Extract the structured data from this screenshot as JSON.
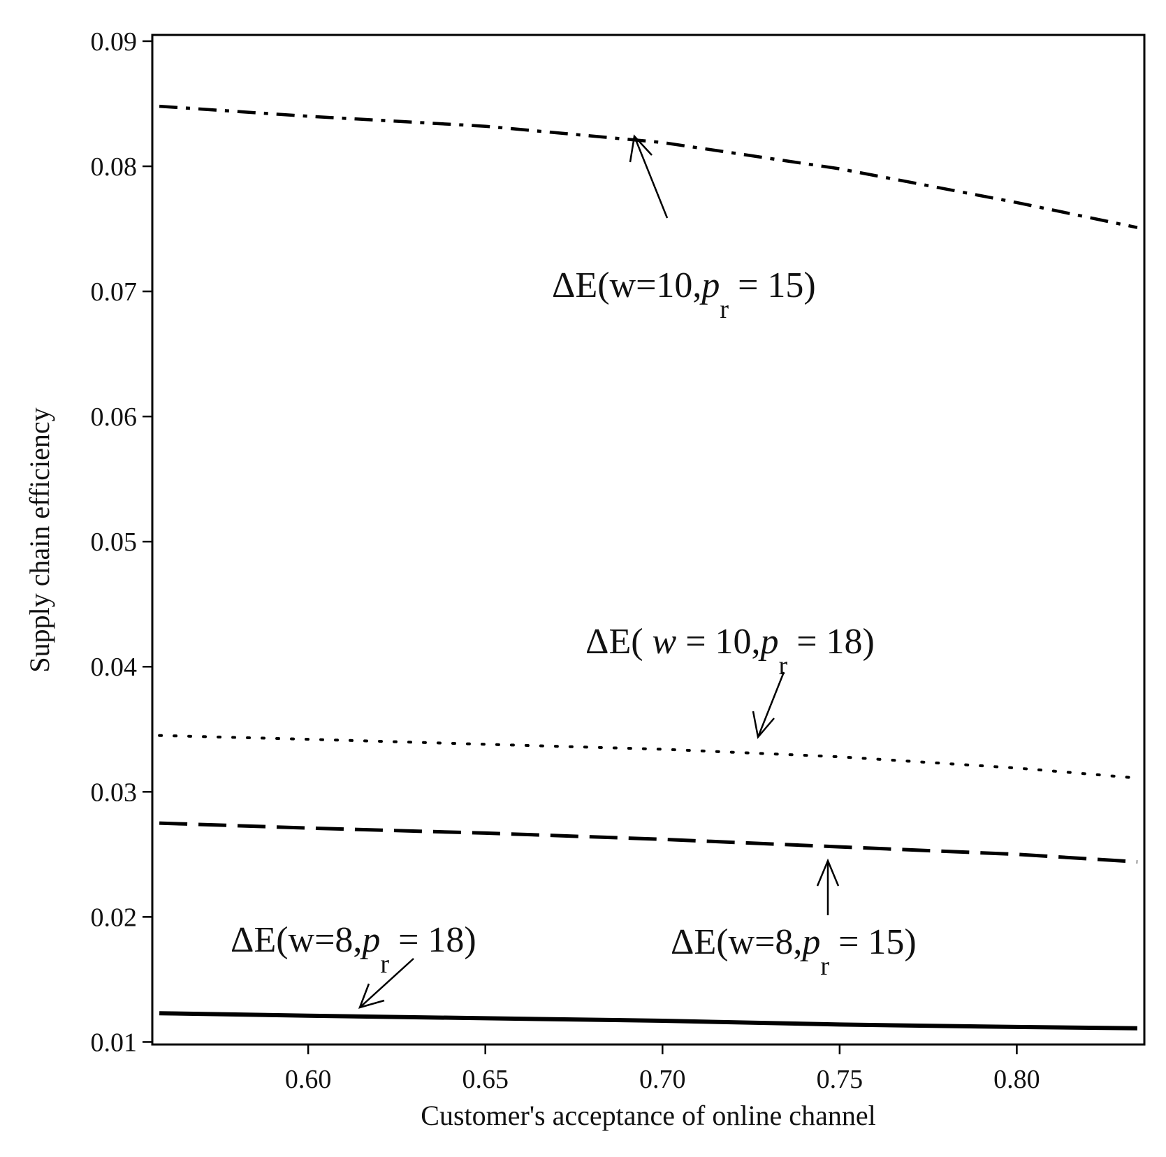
{
  "chart_data": {
    "type": "line",
    "xlabel": "Customer's acceptance of online channel",
    "ylabel": "Supply chain efficiency",
    "xlim": [
      0.556,
      0.836
    ],
    "ylim": [
      0.0098,
      0.0905
    ],
    "xticks": [
      0.6,
      0.65,
      0.7,
      0.75,
      0.8
    ],
    "xtick_labels": [
      "0.60",
      "0.65",
      "0.70",
      "0.75",
      "0.80"
    ],
    "yticks": [
      0.01,
      0.02,
      0.03,
      0.04,
      0.05,
      0.06,
      0.07,
      0.08,
      0.09
    ],
    "ytick_labels": [
      "0.01",
      "0.02",
      "0.03",
      "0.04",
      "0.05",
      "0.06",
      "0.07",
      "0.08",
      "0.09"
    ],
    "grid": false,
    "legend": "none",
    "series": [
      {
        "style": "dash-dot",
        "label_parts": {
          "pre": "ΔE(w=10,",
          "var": "p",
          "sub": "r",
          "post": " = 15)"
        },
        "x": [
          0.558,
          0.6,
          0.65,
          0.7,
          0.75,
          0.8,
          0.834
        ],
        "y": [
          0.0848,
          0.084,
          0.0832,
          0.0819,
          0.0798,
          0.0771,
          0.0751
        ]
      },
      {
        "style": "dotted",
        "label_parts": {
          "pre": "ΔE( ",
          "var": "w",
          "sub": "r",
          "post_a": " = 10,",
          "var2": "p",
          "post": " = 18)"
        },
        "x": [
          0.558,
          0.6,
          0.65,
          0.7,
          0.75,
          0.8,
          0.834
        ],
        "y": [
          0.0345,
          0.0342,
          0.0338,
          0.0334,
          0.0328,
          0.0319,
          0.0311
        ]
      },
      {
        "style": "dashed",
        "label_parts": {
          "pre": "ΔE(w=8,",
          "var": "p",
          "sub": "r",
          "post": " = 15)"
        },
        "x": [
          0.558,
          0.6,
          0.65,
          0.7,
          0.75,
          0.8,
          0.834
        ],
        "y": [
          0.0275,
          0.0271,
          0.0267,
          0.0262,
          0.0256,
          0.025,
          0.0244
        ]
      },
      {
        "style": "solid",
        "label_parts": {
          "pre": "ΔE(w=8,",
          "var": "p",
          "sub": "r",
          "post": " = 18)"
        },
        "x": [
          0.558,
          0.6,
          0.65,
          0.7,
          0.75,
          0.8,
          0.834
        ],
        "y": [
          0.0123,
          0.0121,
          0.0119,
          0.0117,
          0.0114,
          0.0112,
          0.0111
        ]
      }
    ]
  }
}
